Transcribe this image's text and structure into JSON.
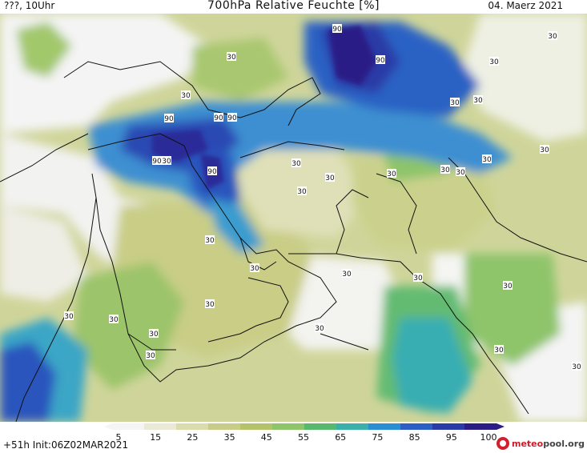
{
  "header": {
    "left": "???, 10Uhr",
    "title": "700hPa Relative Feuchte [%]",
    "right": "04. Maerz 2021"
  },
  "footer": {
    "run_info": "+51h Init:06Z02MAR2021",
    "logo_red": "meteo",
    "logo_grey": "pool.org"
  },
  "legend": {
    "ticks": [
      "5",
      "15",
      "25",
      "35",
      "45",
      "55",
      "65",
      "75",
      "85",
      "95",
      "100"
    ],
    "colors": [
      "#f5f5f5",
      "#e9e9d5",
      "#dbdcae",
      "#c8cc88",
      "#b4c36a",
      "#8fc56a",
      "#58b96e",
      "#3ab0a9",
      "#2a8fd2",
      "#2b5fc6",
      "#2a3aa6",
      "#2b1c86"
    ]
  },
  "contour_labels": [
    {
      "value": "90",
      "role": "high"
    },
    {
      "value": "90",
      "role": "high"
    },
    {
      "value": "90",
      "role": "high"
    },
    {
      "value": "90",
      "role": "high"
    },
    {
      "value": "90",
      "role": "high"
    },
    {
      "value": "90",
      "role": "high"
    },
    {
      "value": "90",
      "role": "high"
    },
    {
      "value": "30"
    },
    {
      "value": "30"
    },
    {
      "value": "30"
    },
    {
      "value": "30"
    },
    {
      "value": "30"
    },
    {
      "value": "30"
    },
    {
      "value": "30"
    },
    {
      "value": "30"
    },
    {
      "value": "30"
    },
    {
      "value": "30"
    },
    {
      "value": "30"
    },
    {
      "value": "30"
    },
    {
      "value": "30"
    },
    {
      "value": "30"
    },
    {
      "value": "30"
    },
    {
      "value": "30"
    },
    {
      "value": "30"
    },
    {
      "value": "30"
    },
    {
      "value": "30"
    },
    {
      "value": "30"
    },
    {
      "value": "30"
    },
    {
      "value": "30"
    },
    {
      "value": "30"
    },
    {
      "value": "30"
    },
    {
      "value": "30"
    },
    {
      "value": "30"
    },
    {
      "value": "30"
    },
    {
      "value": "30"
    }
  ]
}
